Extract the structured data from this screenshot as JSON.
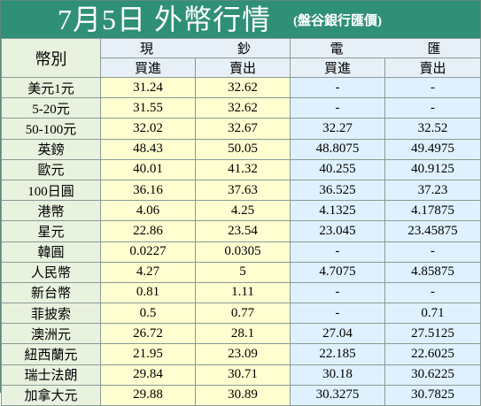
{
  "title": "7月5日 外幣行情",
  "subtitle": "(盤谷銀行匯價)",
  "headers": {
    "currency": "幣別",
    "cash": "現　鈔",
    "wire": "電　匯",
    "buy": "買進",
    "sell": "賣出"
  },
  "rows": [
    {
      "name": "美元1元",
      "cash_buy": "31.24",
      "cash_sell": "32.62",
      "wire_buy": "-",
      "wire_sell": "-"
    },
    {
      "name": "5-20元",
      "cash_buy": "31.55",
      "cash_sell": "32.62",
      "wire_buy": "-",
      "wire_sell": "-"
    },
    {
      "name": "50-100元",
      "cash_buy": "32.02",
      "cash_sell": "32.67",
      "wire_buy": "32.27",
      "wire_sell": "32.52"
    },
    {
      "name": "英鎊",
      "cash_buy": "48.43",
      "cash_sell": "50.05",
      "wire_buy": "48.8075",
      "wire_sell": "49.4975"
    },
    {
      "name": "歐元",
      "cash_buy": "40.01",
      "cash_sell": "41.32",
      "wire_buy": "40.255",
      "wire_sell": "40.9125"
    },
    {
      "name": "100日圓",
      "cash_buy": "36.16",
      "cash_sell": "37.63",
      "wire_buy": "36.525",
      "wire_sell": "37.23"
    },
    {
      "name": "港幣",
      "cash_buy": "4.06",
      "cash_sell": "4.25",
      "wire_buy": "4.1325",
      "wire_sell": "4.17875"
    },
    {
      "name": "星元",
      "cash_buy": "22.86",
      "cash_sell": "23.54",
      "wire_buy": "23.045",
      "wire_sell": "23.45875"
    },
    {
      "name": "韓圓",
      "cash_buy": "0.0227",
      "cash_sell": "0.0305",
      "wire_buy": "-",
      "wire_sell": "-"
    },
    {
      "name": "人民幣",
      "cash_buy": "4.27",
      "cash_sell": "5",
      "wire_buy": "4.7075",
      "wire_sell": "4.85875"
    },
    {
      "name": "新台幣",
      "cash_buy": "0.81",
      "cash_sell": "1.11",
      "wire_buy": "-",
      "wire_sell": "-"
    },
    {
      "name": "菲披索",
      "cash_buy": "0.5",
      "cash_sell": "0.77",
      "wire_buy": "-",
      "wire_sell": "0.71"
    },
    {
      "name": "澳洲元",
      "cash_buy": "26.72",
      "cash_sell": "28.1",
      "wire_buy": "27.04",
      "wire_sell": "27.5125"
    },
    {
      "name": "紐西蘭元",
      "cash_buy": "21.95",
      "cash_sell": "23.09",
      "wire_buy": "22.185",
      "wire_sell": "22.6025"
    },
    {
      "name": "瑞士法朗",
      "cash_buy": "29.84",
      "cash_sell": "30.71",
      "wire_buy": "30.18",
      "wire_sell": "30.6225"
    },
    {
      "name": "加拿大元",
      "cash_buy": "29.88",
      "cash_sell": "30.89",
      "wire_buy": "30.3275",
      "wire_sell": "30.7825"
    }
  ]
}
